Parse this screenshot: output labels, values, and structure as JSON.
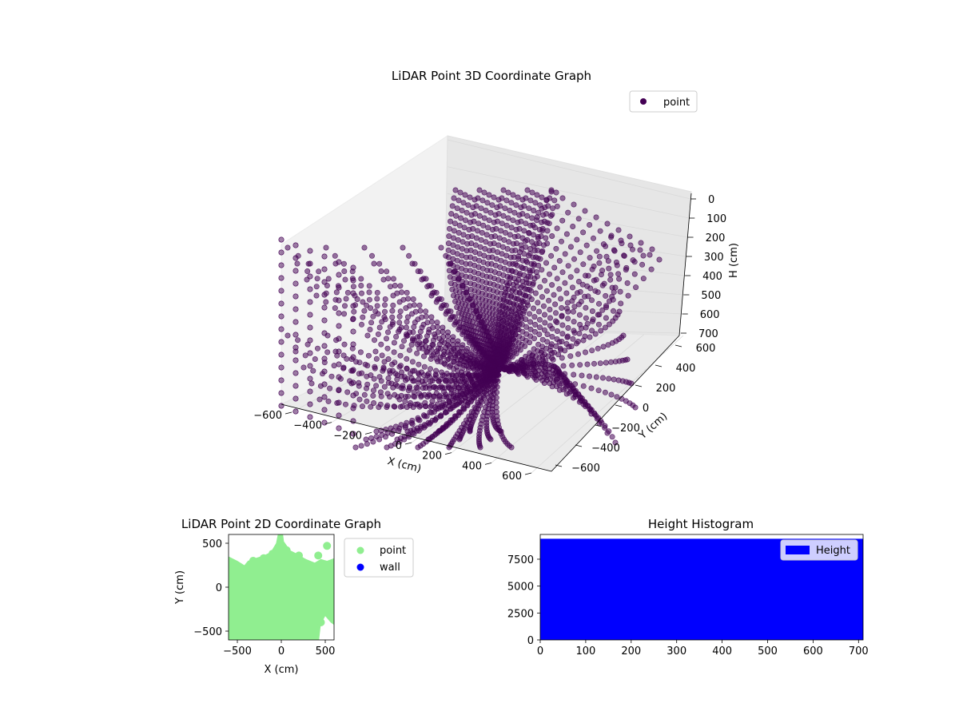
{
  "chart_data": [
    {
      "type": "scatter",
      "projection": "3d",
      "title": "LiDAR Point 3D Coordinate Graph",
      "xlabel": "X (cm)",
      "ylabel": "Y (cm)",
      "zlabel": "H (cm)",
      "x_ticks": [
        "−600",
        "−400",
        "−200",
        "0",
        "200",
        "400",
        "600"
      ],
      "y_ticks": [
        "−600",
        "−400",
        "−200",
        "0",
        "200",
        "400",
        "600"
      ],
      "z_ticks": [
        "0",
        "100",
        "200",
        "300",
        "400",
        "500",
        "600",
        "700"
      ],
      "xlim": [
        -600,
        600
      ],
      "ylim": [
        -600,
        600
      ],
      "zlim": [
        700,
        0
      ],
      "z_axis_inverted": true,
      "grid": true,
      "legend": {
        "placement": "top-right",
        "entries": [
          {
            "label": "point",
            "color": "#440154"
          }
        ]
      },
      "series": [
        {
          "name": "point",
          "color": "#440154",
          "description_of_shape": "points lie on curved arcs radiating from sensor near origin",
          "samples": [
            {
              "x": 0,
              "y": 0,
              "h": 700
            },
            {
              "x": -100,
              "y": 500,
              "h": 80
            },
            {
              "x": 150,
              "y": 550,
              "h": 70
            },
            {
              "x": -600,
              "y": -100,
              "h": 250
            },
            {
              "x": -500,
              "y": -400,
              "h": 300
            },
            {
              "x": 600,
              "y": 300,
              "h": 400
            },
            {
              "x": 500,
              "y": -500,
              "h": 600
            },
            {
              "x": 200,
              "y": -600,
              "h": 650
            }
          ]
        }
      ]
    },
    {
      "type": "scatter",
      "title": "LiDAR Point 2D Coordinate Graph",
      "xlabel": "X (cm)",
      "ylabel": "Y (cm)",
      "x_ticks": [
        "−500",
        "0",
        "500"
      ],
      "y_ticks": [
        "−500",
        "0",
        "500"
      ],
      "xlim": [
        -600,
        600
      ],
      "ylim": [
        -600,
        600
      ],
      "legend": {
        "placement": "outside-right",
        "entries": [
          {
            "label": "point",
            "color": "#90ee90"
          },
          {
            "label": "wall",
            "color": "#0000ff"
          }
        ]
      },
      "series": [
        {
          "name": "point",
          "color": "#90ee90",
          "region_outline_data_units": [
            [
              -600,
              350
            ],
            [
              -500,
              300
            ],
            [
              -420,
              250
            ],
            [
              -380,
              300
            ],
            [
              -300,
              330
            ],
            [
              -200,
              360
            ],
            [
              -120,
              400
            ],
            [
              -60,
              500
            ],
            [
              -40,
              600
            ],
            [
              20,
              600
            ],
            [
              30,
              520
            ],
            [
              100,
              420
            ],
            [
              180,
              380
            ],
            [
              280,
              320
            ],
            [
              380,
              280
            ],
            [
              450,
              320
            ],
            [
              520,
              300
            ],
            [
              600,
              330
            ],
            [
              600,
              -430
            ],
            [
              560,
              -400
            ],
            [
              500,
              -330
            ],
            [
              450,
              -420
            ],
            [
              430,
              -600
            ],
            [
              -600,
              -600
            ]
          ]
        },
        {
          "name": "wall",
          "color": "#0000ff",
          "values": []
        }
      ]
    },
    {
      "type": "bar",
      "title": "Height Histogram",
      "xlabel": "",
      "ylabel": "",
      "x_ticks": [
        "0",
        "100",
        "200",
        "300",
        "400",
        "500",
        "600",
        "700"
      ],
      "y_ticks": [
        "0",
        "2500",
        "5000",
        "7500"
      ],
      "xlim": [
        0,
        710
      ],
      "ylim": [
        0,
        9800
      ],
      "legend": {
        "placement": "top-right",
        "entries": [
          {
            "label": "Height",
            "color": "#0000ff"
          }
        ]
      },
      "series": [
        {
          "name": "Height",
          "color": "#0000ff",
          "bin_range": [
            0,
            710
          ],
          "value": 9400
        }
      ]
    }
  ]
}
